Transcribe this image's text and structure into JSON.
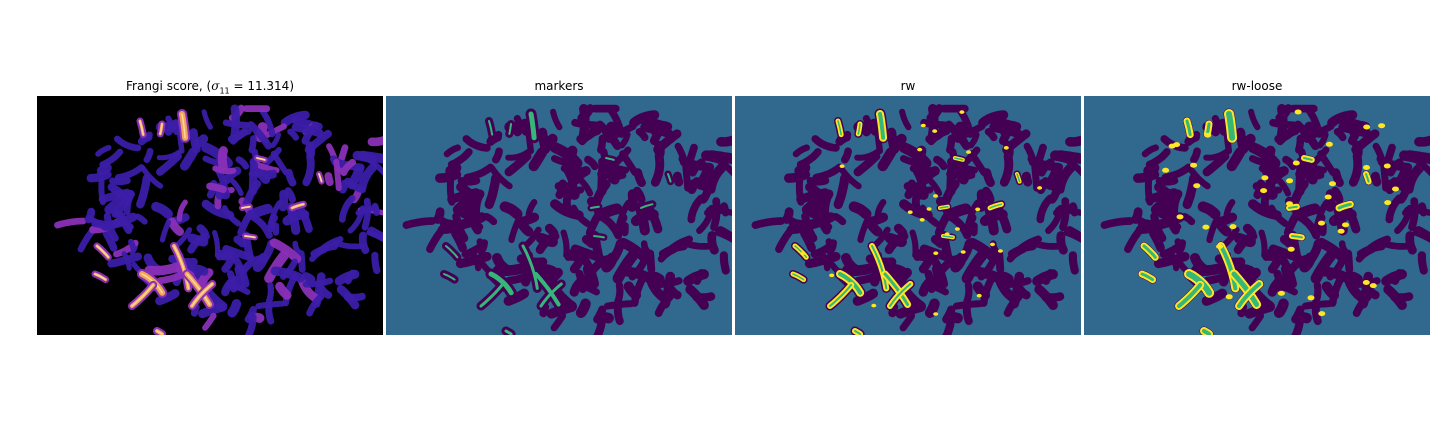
{
  "titles": {
    "frangi_prefix": "Frangi score, (",
    "frangi_sigma": "σ",
    "frangi_sub": "11",
    "frangi_suffix": " = 11.314)",
    "markers": "markers",
    "rw": "rw",
    "rw_loose": "rw-loose"
  },
  "colors": {
    "frangi_bg": "#000000",
    "frangi_low": "#3b1ea8",
    "frangi_mid": "#8a2fb8",
    "frangi_high": "#f2a35a",
    "frangi_peak": "#fde9a8",
    "label_bg": "#31688e",
    "label_blob": "#440154",
    "label_green": "#35b779",
    "label_yellow": "#fde725"
  }
}
